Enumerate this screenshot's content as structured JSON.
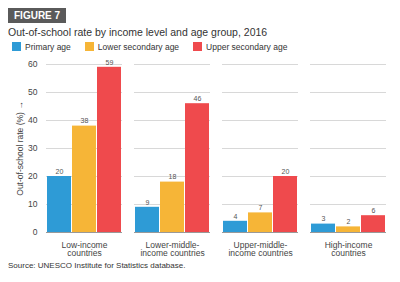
{
  "chart_data": {
    "type": "bar",
    "figure_label": "FIGURE 7",
    "title": "Out-of-school rate by income level and age group, 2016",
    "source": "Source: UNESCO Institute for Statistics database.",
    "y_label": "Out-of-school rate (%)",
    "categories": [
      "Low-income countries",
      "Lower-middle-income countries",
      "Upper-middle-income countries",
      "High-income countries"
    ],
    "series": [
      {
        "name": "Primary age",
        "color": "#2e9bd6",
        "values": [
          20,
          9,
          4,
          3
        ]
      },
      {
        "name": "Lower secondary age",
        "color": "#f6b537",
        "values": [
          38,
          18,
          7,
          2
        ]
      },
      {
        "name": "Upper secondary age",
        "color": "#ef4a4d",
        "values": [
          59,
          46,
          20,
          6
        ]
      }
    ],
    "ylim": [
      0,
      60
    ],
    "yticks": [
      0,
      10,
      20,
      30,
      40,
      50,
      60
    ],
    "grid": true,
    "legend": "top-left",
    "data_labels": true
  }
}
